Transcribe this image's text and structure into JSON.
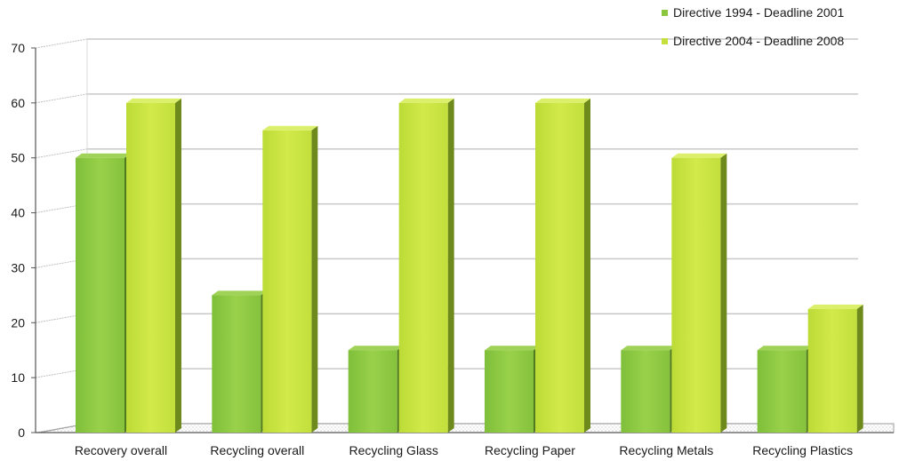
{
  "chart_data": {
    "type": "bar",
    "title": "",
    "xlabel": "",
    "ylabel": "",
    "categories": [
      "Recovery overall",
      "Recycling overall",
      "Recycling Glass",
      "Recycling Paper",
      "Recycling Metals",
      "Recycling Plastics"
    ],
    "series": [
      {
        "name": "Directive 1994 - Deadline 2001",
        "values": [
          50,
          25,
          15,
          15,
          15,
          15
        ],
        "color": "#8cc63f"
      },
      {
        "name": "Directive 2004 - Deadline 2008",
        "values": [
          60,
          55,
          60,
          60,
          50,
          22.5
        ],
        "color": "#c6e03b"
      }
    ],
    "ylim": [
      0,
      70
    ],
    "yticks": [
      "0",
      "10",
      "20",
      "30",
      "40",
      "50",
      "60",
      "70"
    ],
    "grid": true,
    "legend_position": "top-right",
    "style": "3d-bar"
  }
}
